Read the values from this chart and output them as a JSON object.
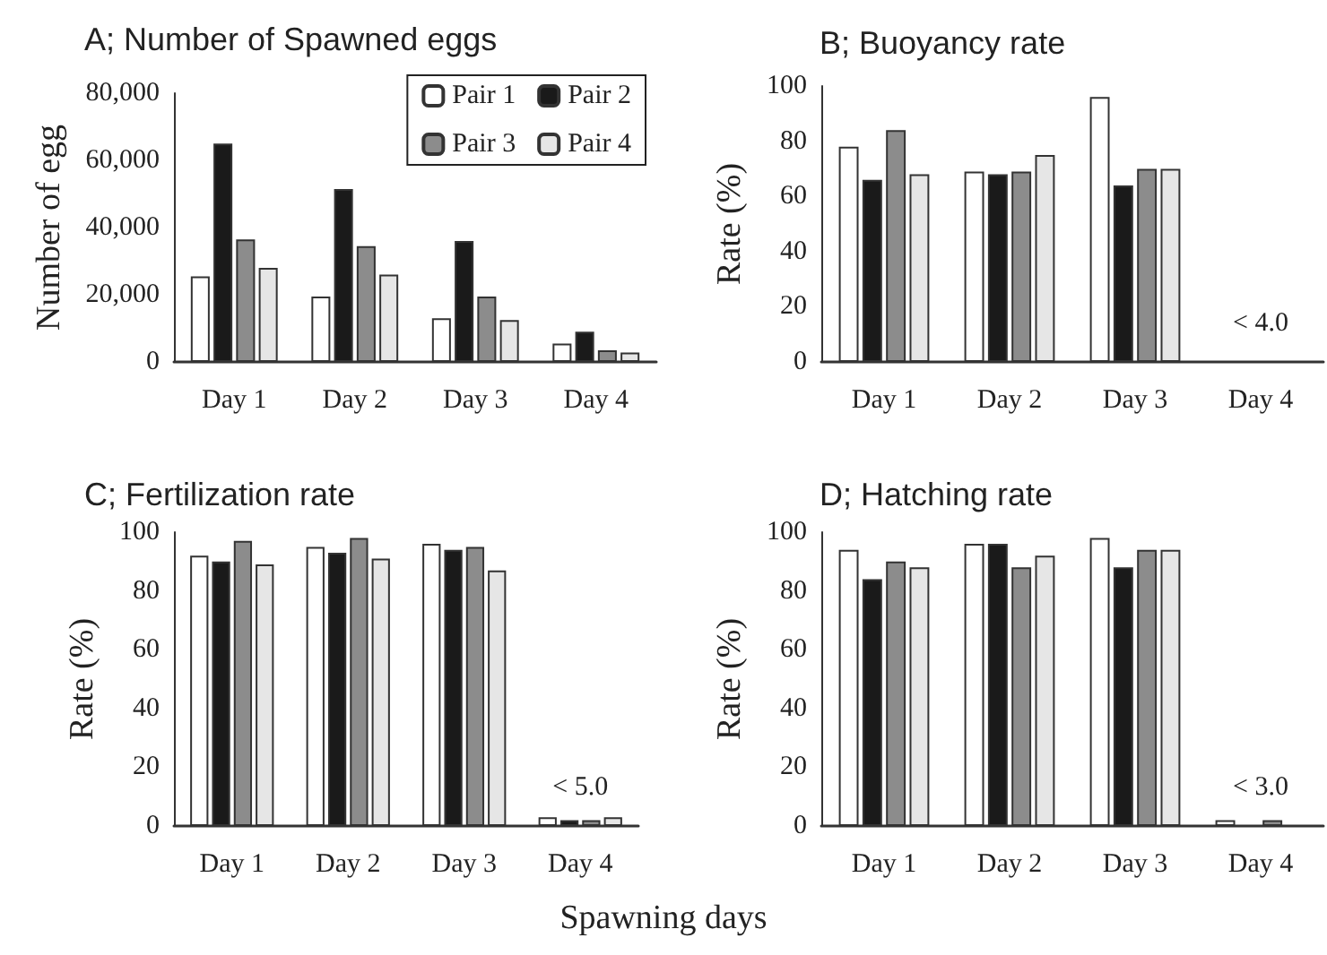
{
  "chart_data": [
    {
      "type": "bar",
      "title": "A; Number of Spawned eggs",
      "ylabel": "Number of egg",
      "categories": [
        "Day 1",
        "Day 2",
        "Day 3",
        "Day 4"
      ],
      "series": [
        {
          "name": "Pair 1",
          "color": "#ffffff",
          "values": [
            25500,
            19500,
            13000,
            5500
          ]
        },
        {
          "name": "Pair 2",
          "color": "#1a1a1a",
          "values": [
            65000,
            51500,
            36000,
            9000
          ]
        },
        {
          "name": "Pair 3",
          "color": "#8c8c8c",
          "values": [
            36500,
            34500,
            19500,
            3500
          ]
        },
        {
          "name": "Pair 4",
          "color": "#e6e6e6",
          "values": [
            28000,
            26000,
            12500,
            2800
          ]
        }
      ],
      "ylim": [
        0,
        80000
      ],
      "yticks": [
        {
          "value": 0,
          "label": "0"
        },
        {
          "value": 20000,
          "label": "20,000"
        },
        {
          "value": 40000,
          "label": "40,000"
        },
        {
          "value": 60000,
          "label": "60,000"
        },
        {
          "value": 80000,
          "label": "80,000"
        }
      ],
      "legend": "top right",
      "grid": false
    },
    {
      "type": "bar",
      "title": "B; Buoyancy rate",
      "ylabel": "Rate (%)",
      "categories": [
        "Day 1",
        "Day 2",
        "Day 3",
        "Day 4"
      ],
      "series": [
        {
          "color": "#ffffff",
          "values": [
            78,
            69,
            96,
            null
          ]
        },
        {
          "color": "#1a1a1a",
          "values": [
            66,
            68,
            64,
            null
          ]
        },
        {
          "color": "#8c8c8c",
          "values": [
            84,
            69,
            70,
            null
          ]
        },
        {
          "color": "#e6e6e6",
          "values": [
            68,
            75,
            70,
            null
          ]
        }
      ],
      "ylim": [
        0,
        100
      ],
      "yticks": [
        0,
        20,
        40,
        60,
        80,
        100
      ],
      "grid": false,
      "annotations": [
        "< 4.0"
      ]
    },
    {
      "type": "bar",
      "title": "C; Fertilization rate",
      "ylabel": "Rate (%)",
      "xlabel": "Spawning days",
      "categories": [
        "Day 1",
        "Day 2",
        "Day 3",
        "Day 4"
      ],
      "series": [
        {
          "color": "#ffffff",
          "values": [
            92,
            95,
            96,
            3
          ]
        },
        {
          "color": "#1a1a1a",
          "values": [
            90,
            93,
            94,
            2
          ]
        },
        {
          "color": "#8c8c8c",
          "values": [
            97,
            98,
            95,
            2
          ]
        },
        {
          "color": "#e6e6e6",
          "values": [
            89,
            91,
            87,
            3
          ]
        }
      ],
      "ylim": [
        0,
        100
      ],
      "yticks": [
        0,
        20,
        40,
        60,
        80,
        100
      ],
      "grid": false,
      "annotations": [
        "< 5.0"
      ]
    },
    {
      "type": "bar",
      "title": "D; Hatching rate",
      "ylabel": "Rate (%)",
      "categories": [
        "Day 1",
        "Day 2",
        "Day 3",
        "Day 4"
      ],
      "series": [
        {
          "color": "#ffffff",
          "values": [
            94,
            96,
            98,
            2
          ]
        },
        {
          "color": "#1a1a1a",
          "values": [
            84,
            96,
            88,
            null
          ]
        },
        {
          "color": "#8c8c8c",
          "values": [
            90,
            88,
            94,
            2
          ]
        },
        {
          "color": "#e6e6e6",
          "values": [
            88,
            92,
            94,
            null
          ]
        }
      ],
      "ylim": [
        0,
        100
      ],
      "yticks": [
        0,
        20,
        40,
        60,
        80,
        100
      ],
      "grid": false,
      "annotations": [
        "< 3.0"
      ]
    }
  ]
}
